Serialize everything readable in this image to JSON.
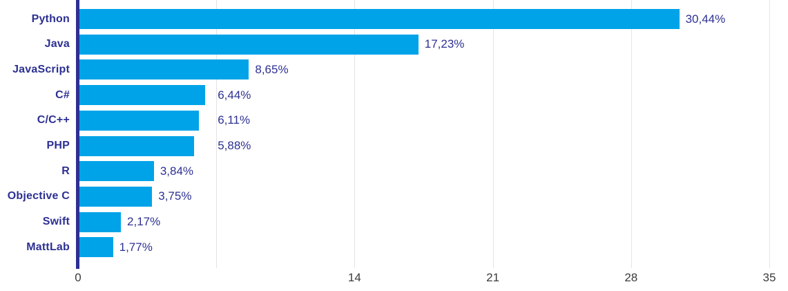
{
  "chart_data": {
    "type": "bar",
    "orientation": "horizontal",
    "title": "",
    "xlabel": "",
    "ylabel": "",
    "xlim": [
      0,
      35
    ],
    "grid": true,
    "gridline_interval": 7,
    "categories": [
      "Python",
      "Java",
      "JavaScript",
      "C#",
      "C/C++",
      "PHP",
      "R",
      "Objective C",
      "Swift",
      "MattLab"
    ],
    "values": [
      30.44,
      17.23,
      8.65,
      6.44,
      6.11,
      5.88,
      3.84,
      3.75,
      2.17,
      1.77
    ],
    "value_labels": [
      "30,44%",
      "17,23%",
      "8,65%",
      "6,44%",
      "6,11%",
      "5,88%",
      "3,84%",
      "3,75%",
      "2,17%",
      "1,77%"
    ],
    "x_ticks": [
      {
        "value": 0,
        "label": "0"
      },
      {
        "value": 7,
        "label": ""
      },
      {
        "value": 14,
        "label": "14"
      },
      {
        "value": 21,
        "label": "21"
      },
      {
        "value": 28,
        "label": "28"
      },
      {
        "value": 35,
        "label": "35"
      }
    ],
    "legend": null,
    "colors": {
      "bar": "#00A3E8",
      "axis": "#2D3092",
      "category_label": "#2D3092",
      "value_label": "#2D3092",
      "tick_label": "#3B3B3B",
      "gridline": "#E4E4E4",
      "background": "#FFFFFF"
    }
  }
}
